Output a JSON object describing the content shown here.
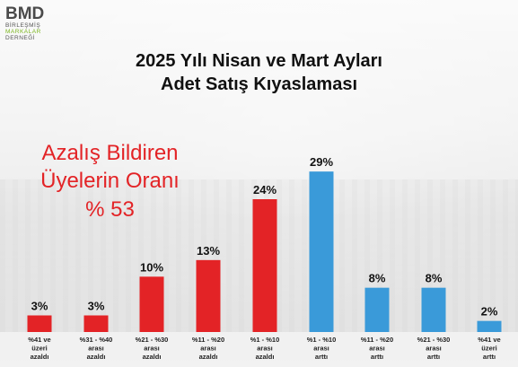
{
  "logo": {
    "name": "BMD",
    "lines": [
      "BİRLEŞMİŞ",
      "MARKALAR",
      "DERNEĞİ"
    ]
  },
  "title_line1": "2025 Yılı Nisan ve Mart Ayları",
  "title_line2": "Adet Satış Kıyaslaması",
  "callout": {
    "line1": "Azalış Bildiren",
    "line2": "Üyelerin Oranı",
    "line3": "% 53"
  },
  "colors": {
    "decrease": "#e32326",
    "increase": "#3a9ad9",
    "callout": "#e32326"
  },
  "chart_data": {
    "type": "bar",
    "title": "2025 Yılı Nisan ve Mart Ayları Adet Satış Kıyaslaması",
    "categories": [
      [
        "%41 ve",
        "üzeri",
        "azaldı"
      ],
      [
        "%31 - %40",
        "arası",
        "azaldı"
      ],
      [
        "%21 - %30",
        "arası",
        "azaldı"
      ],
      [
        "%11 - %20",
        "arası",
        "azaldı"
      ],
      [
        "%1 - %10",
        "arası",
        "azaldı"
      ],
      [
        "%1 - %10",
        "arası",
        "arttı"
      ],
      [
        "%11 - %20",
        "arası",
        "arttı"
      ],
      [
        "%21 - %30",
        "arası",
        "arttı"
      ],
      [
        "%41 ve",
        "üzeri",
        "arttı"
      ]
    ],
    "values": [
      3,
      3,
      10,
      13,
      24,
      29,
      8,
      8,
      2
    ],
    "value_labels": [
      "3%",
      "3%",
      "10%",
      "13%",
      "24%",
      "29%",
      "8%",
      "8%",
      "2%"
    ],
    "groups": [
      "decrease",
      "decrease",
      "decrease",
      "decrease",
      "decrease",
      "increase",
      "increase",
      "increase",
      "increase"
    ],
    "ylim": [
      0,
      30
    ],
    "xlabel": "",
    "ylabel": "",
    "grid": false,
    "legend": "none"
  }
}
